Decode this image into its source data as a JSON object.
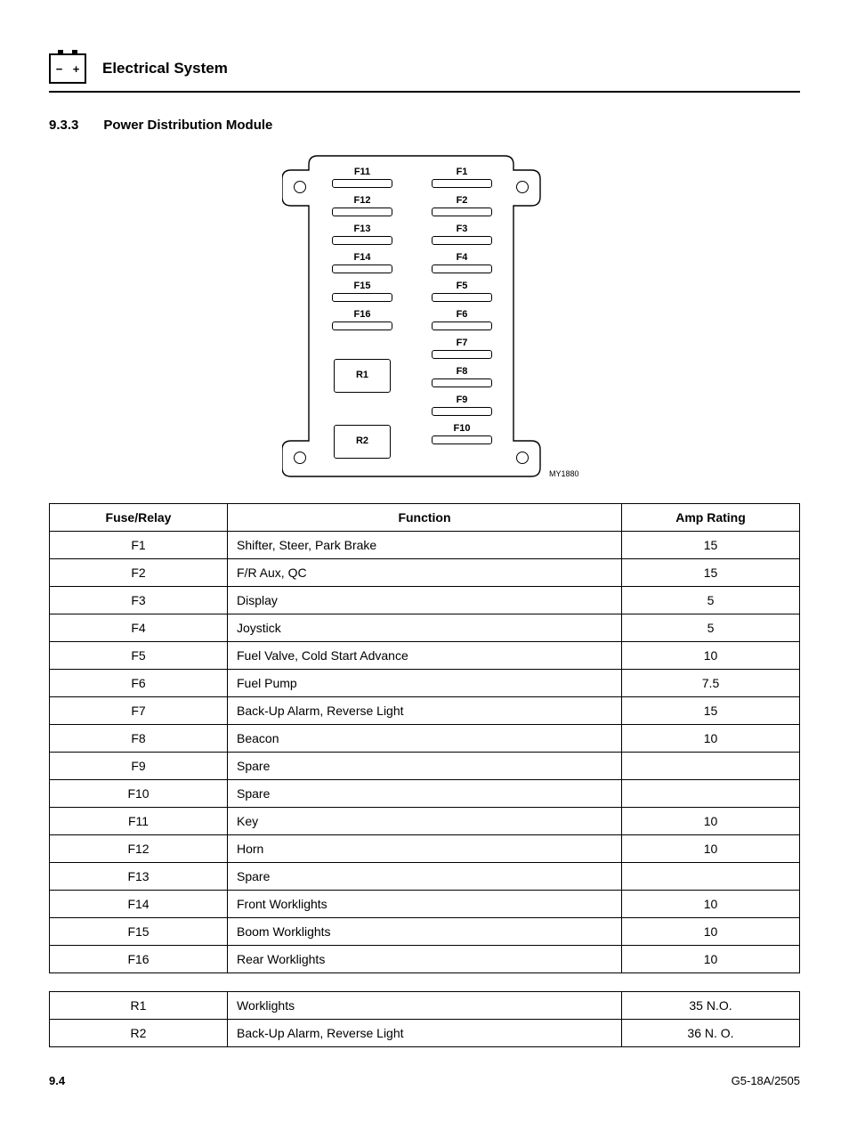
{
  "header": {
    "chapter_title": "Electrical System"
  },
  "section": {
    "number": "9.3.3",
    "title": "Power Distribution Module"
  },
  "diagram": {
    "id": "MY1880",
    "left_column": [
      "F11",
      "F12",
      "F13",
      "F14",
      "F15",
      "F16"
    ],
    "right_column": [
      "F1",
      "F2",
      "F3",
      "F4",
      "F5",
      "F6",
      "F7",
      "F8",
      "F9",
      "F10"
    ],
    "relays": [
      "R1",
      "R2"
    ]
  },
  "fuse_table": {
    "headers": [
      "Fuse/Relay",
      "Function",
      "Amp Rating"
    ],
    "rows": [
      [
        "F1",
        "Shifter, Steer, Park Brake",
        "15"
      ],
      [
        "F2",
        "F/R Aux, QC",
        "15"
      ],
      [
        "F3",
        "Display",
        "5"
      ],
      [
        "F4",
        "Joystick",
        "5"
      ],
      [
        "F5",
        "Fuel Valve, Cold Start Advance",
        "10"
      ],
      [
        "F6",
        "Fuel Pump",
        "7.5"
      ],
      [
        "F7",
        "Back-Up Alarm, Reverse Light",
        "15"
      ],
      [
        "F8",
        "Beacon",
        "10"
      ],
      [
        "F9",
        "Spare",
        ""
      ],
      [
        "F10",
        "Spare",
        ""
      ],
      [
        "F11",
        "Key",
        "10"
      ],
      [
        "F12",
        "Horn",
        "10"
      ],
      [
        "F13",
        "Spare",
        ""
      ],
      [
        "F14",
        "Front Worklights",
        "10"
      ],
      [
        "F15",
        "Boom Worklights",
        "10"
      ],
      [
        "F16",
        "Rear Worklights",
        "10"
      ]
    ]
  },
  "relay_table": {
    "rows": [
      [
        "R1",
        "Worklights",
        "35 N.O."
      ],
      [
        "R2",
        "Back-Up Alarm, Reverse Light",
        "36 N. O."
      ]
    ]
  },
  "footer": {
    "page": "9.4",
    "doc": "G5-18A/2505"
  }
}
